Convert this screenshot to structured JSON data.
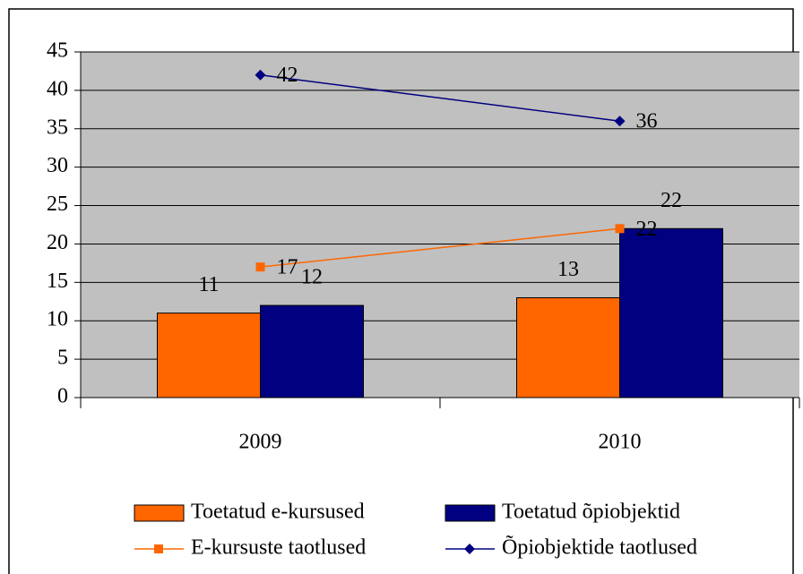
{
  "chart_data": {
    "type": "bar",
    "categories": [
      "2009",
      "2010"
    ],
    "series": [
      {
        "name": "Toetatud e-kursused",
        "type": "bar",
        "color": "#ff6600",
        "values": [
          11,
          13
        ]
      },
      {
        "name": "Toetatud õpiobjektid",
        "type": "bar",
        "color": "#000080",
        "values": [
          12,
          22
        ]
      },
      {
        "name": "E-kursuste taotlused",
        "type": "line",
        "marker": "square",
        "color": "#ff6600",
        "values": [
          17,
          22
        ]
      },
      {
        "name": "Õpiobjektide taotlused",
        "type": "line",
        "marker": "diamond",
        "color": "#000080",
        "values": [
          42,
          36
        ]
      }
    ],
    "ylim": [
      0,
      45
    ],
    "yticks": [
      0,
      5,
      10,
      15,
      20,
      25,
      30,
      35,
      40,
      45
    ],
    "grid": true,
    "legend": "bottom",
    "plot_background": "#c0c0c0"
  }
}
